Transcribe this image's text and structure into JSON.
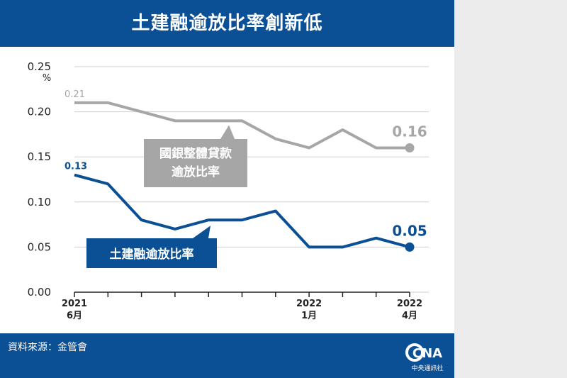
{
  "title": "土建融逾放比率創新低",
  "source": "資料來源：金管會",
  "brand": {
    "logo_text": "CNA",
    "org": "中央通訊社"
  },
  "colors": {
    "header": "#0b4f95",
    "construction": "#0b4f95",
    "bank": "#a6a6a6"
  },
  "chart_data": {
    "type": "line",
    "title": "土建融逾放比率創新低",
    "ylabel": "%",
    "ylim": [
      0,
      0.25
    ],
    "yticks": [
      0,
      0.05,
      0.1,
      0.15,
      0.2,
      0.25
    ],
    "ytick_labels": [
      "0.00",
      "0.05",
      "0.10",
      "0.15",
      "0.20",
      "0.25"
    ],
    "grid": true,
    "x": [
      "2021-06",
      "2021-07",
      "2021-08",
      "2021-09",
      "2021-10",
      "2021-11",
      "2021-12",
      "2022-01",
      "2022-02",
      "2022-03",
      "2022-04"
    ],
    "xtick_labels": [
      {
        "index": 0,
        "year": "2021",
        "month": "6月"
      },
      {
        "index": 7,
        "year": "2022",
        "month": "1月"
      },
      {
        "index": 10,
        "year": "2022",
        "month": "4月"
      }
    ],
    "series": [
      {
        "name": "國銀整體貸款逾放比率",
        "label_lines": [
          "國銀整體貸款",
          "逾放比率"
        ],
        "values": [
          0.21,
          0.21,
          0.2,
          0.19,
          0.19,
          0.19,
          0.17,
          0.16,
          0.18,
          0.16,
          0.16
        ],
        "start_label": "0.21",
        "end_label": "0.16"
      },
      {
        "name": "土建融逾放比率",
        "label_lines": [
          "土建融逾放比率"
        ],
        "values": [
          0.13,
          0.12,
          0.08,
          0.07,
          0.08,
          0.08,
          0.09,
          0.05,
          0.05,
          0.06,
          0.05
        ],
        "start_label": "0.13",
        "end_label": "0.05"
      }
    ]
  }
}
